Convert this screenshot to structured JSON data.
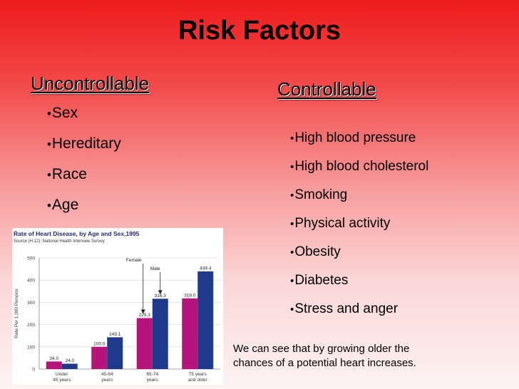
{
  "slide": {
    "title": "Risk Factors",
    "uncontrollable": {
      "heading": "Uncontrollable",
      "items": [
        "Sex",
        "Hereditary",
        "Race",
        "Age"
      ]
    },
    "controllable": {
      "heading": "Controllable",
      "items": [
        "High blood pressure",
        "High blood cholesterol",
        "Smoking",
        "Physical activity",
        "Obesity",
        "Diabetes",
        "Stress and anger"
      ]
    },
    "note": {
      "line1": "We can see that by growing older the",
      "line2": "chances of a potential heart increases."
    },
    "bullet": "•"
  },
  "chart_data": {
    "type": "bar",
    "title": "Rate of Heart Disease, by Age and Sex,1995",
    "source": "Source (H.12): National Health Interview Survey",
    "ylabel": "Rate Per 1,000 Persons",
    "ylim": [
      0,
      500
    ],
    "yticks": [
      0,
      100,
      200,
      300,
      400,
      500
    ],
    "categories": [
      [
        "Under",
        "45 years"
      ],
      [
        "45-64",
        "years"
      ],
      [
        "65-74",
        "years"
      ],
      [
        "75 years",
        "and older"
      ]
    ],
    "series": [
      {
        "name": "Female",
        "values": [
          34.0,
          100.0,
          229.3,
          318.0
        ],
        "labels": [
          "34.0",
          "100.0",
          "229.3",
          "318.0"
        ],
        "color": "#b5157a"
      },
      {
        "name": "Male",
        "values": [
          24.0,
          143.1,
          316.3,
          439.4
        ],
        "labels": [
          "24.0",
          "143.1",
          "316.3",
          "439.4"
        ],
        "color": "#1f3a8a"
      }
    ],
    "annotations": [
      "Female",
      "Male"
    ]
  }
}
